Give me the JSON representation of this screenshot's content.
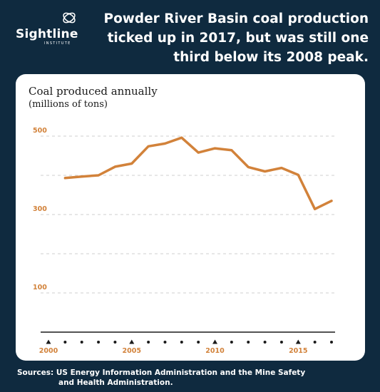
{
  "brand": {
    "name": "Sightline",
    "tagline": "INSTITUTE"
  },
  "headline": "Powder River Basin coal production ticked up in 2017, but was still one third below its 2008 peak.",
  "source": {
    "line1": "Sources: US Energy Information Administration and the Mine Safety",
    "line2": "and Health Administration."
  },
  "colors": {
    "background": "#0f2a3f",
    "panel": "#ffffff",
    "line": "#d2823a",
    "tick_label": "#d2823a",
    "grid": "#cfcfcf",
    "axis": "#1a1a1a"
  },
  "chart_data": {
    "type": "line",
    "title": "Coal produced annually",
    "subtitle": "(millions of tons)",
    "xlabel": "",
    "ylabel": "",
    "ylim": [
      0,
      540
    ],
    "xlim": [
      2000,
      2017
    ],
    "y_ticks": [
      100,
      200,
      300,
      400,
      500
    ],
    "y_tick_labels": [
      "100",
      "",
      "300",
      "",
      "500"
    ],
    "x_tick_labels": [
      "2000",
      "2005",
      "2010",
      "2015"
    ],
    "x_marker_years": [
      2000,
      2005,
      2010,
      2015
    ],
    "x_dot_years": [
      2001,
      2002,
      2003,
      2004,
      2006,
      2007,
      2008,
      2009,
      2011,
      2012,
      2013,
      2014,
      2016,
      2017
    ],
    "grid": true,
    "series": [
      {
        "x": [
          2001,
          2002,
          2003,
          2004,
          2005,
          2006,
          2007,
          2008,
          2009,
          2010,
          2011,
          2012,
          2013,
          2014,
          2015,
          2016,
          2017
        ],
        "values": [
          393,
          397,
          400,
          422,
          430,
          474,
          481,
          496,
          458,
          469,
          464,
          421,
          410,
          419,
          401,
          314,
          335
        ]
      }
    ]
  }
}
